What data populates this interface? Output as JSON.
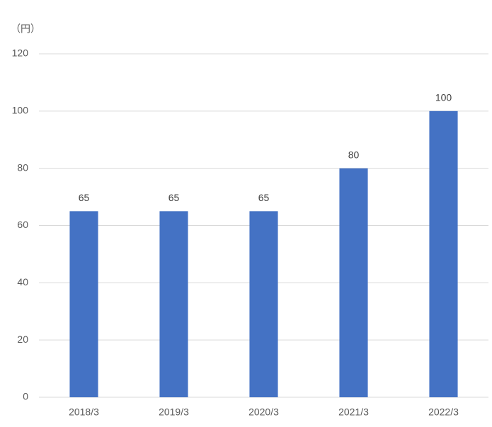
{
  "chart_data": {
    "type": "bar",
    "y_label": "（円）",
    "categories": [
      "2018/3",
      "2019/3",
      "2020/3",
      "2021/3",
      "2022/3"
    ],
    "values": [
      65,
      65,
      65,
      80,
      100
    ],
    "color": "#4472c4",
    "ylim": [
      0,
      120
    ],
    "yticks": [
      0,
      20,
      40,
      60,
      80,
      100,
      120
    ],
    "grid": true,
    "data_labels": true
  }
}
